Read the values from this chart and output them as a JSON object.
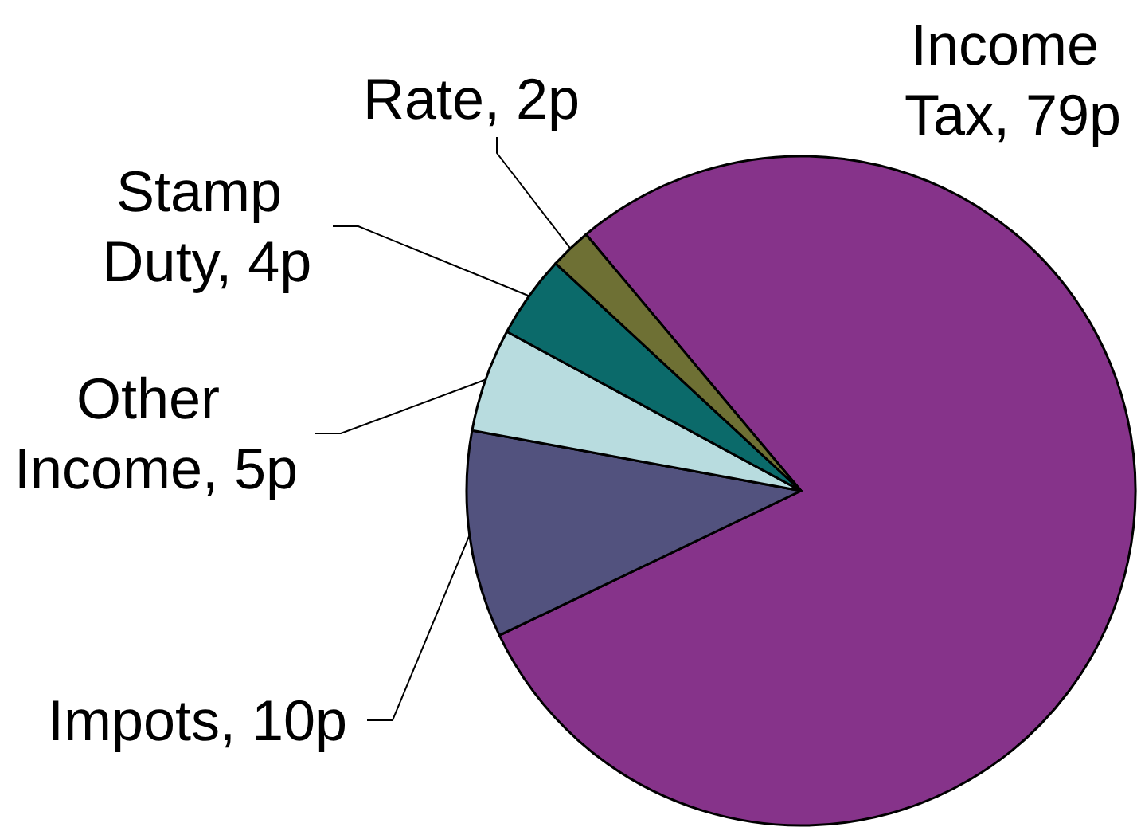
{
  "chart_data": {
    "type": "pie",
    "categories": [
      "Income Tax",
      "Impots",
      "Other Income",
      "Stamp Duty",
      "Rate"
    ],
    "values": [
      79,
      10,
      5,
      4,
      2
    ],
    "value_labels": [
      "79p",
      "10p",
      "5p",
      "4p",
      "2p"
    ],
    "colors": [
      "#86338a",
      "#52527e",
      "#b8dcdf",
      "#0b6a6a",
      "#6e7034"
    ],
    "legend": false
  }
}
